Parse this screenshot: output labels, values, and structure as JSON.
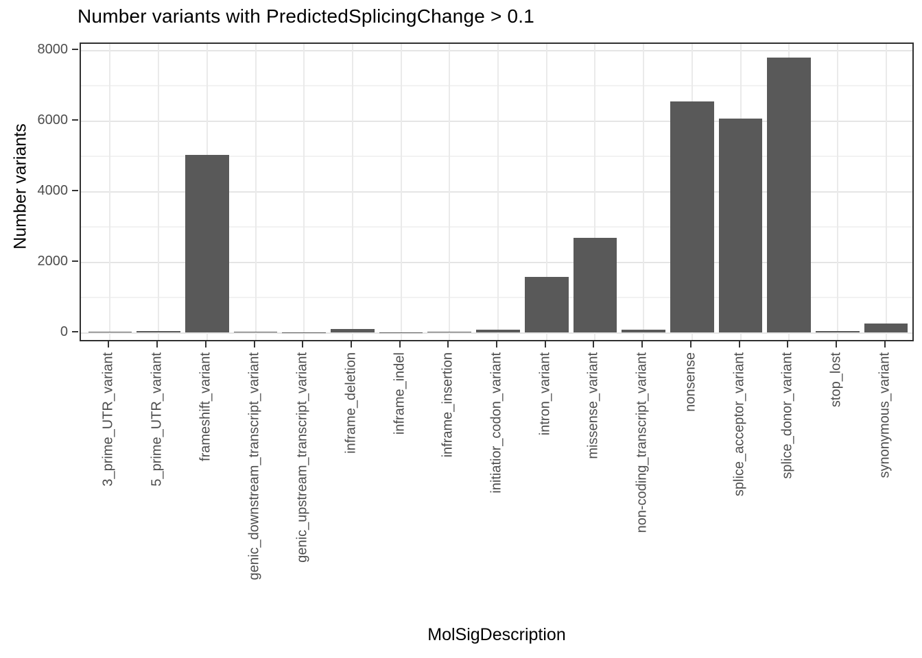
{
  "chart_data": {
    "type": "bar",
    "title": "Number variants with PredictedSplicingChange > 0.1",
    "xlabel": "MolSigDescription",
    "ylabel": "Number variants",
    "categories": [
      "3_prime_UTR_variant",
      "5_prime_UTR_variant",
      "frameshift_variant",
      "genic_downstream_transcript_variant",
      "genic_upstream_transcript_variant",
      "inframe_deletion",
      "inframe_indel",
      "inframe_insertion",
      "initiatior_codon_variant",
      "intron_variant",
      "missense_variant",
      "non-coding_transcript_variant",
      "nonsense",
      "splice_acceptor_variant",
      "splice_donor_variant",
      "stop_lost",
      "synonymous_variant"
    ],
    "values": [
      30,
      55,
      5040,
      30,
      8,
      100,
      5,
      35,
      85,
      1580,
      2680,
      85,
      6550,
      6060,
      7790,
      40,
      260
    ],
    "ylim": [
      0,
      8000
    ],
    "yticks": [
      0,
      2000,
      4000,
      6000,
      8000
    ],
    "yticks_minor": [
      1000,
      3000,
      5000,
      7000
    ],
    "grid": "horizontal major+minor, vertical major at categories",
    "legend": "none",
    "bar_color": "#595959",
    "panel_border_color": "#2f2f2f",
    "grid_major_color": "#e5e5e5",
    "grid_minor_color": "#f2f2f2",
    "tick_label_color": "#4d4d4d",
    "title_color": "#000000",
    "background_color": "#ffffff"
  }
}
